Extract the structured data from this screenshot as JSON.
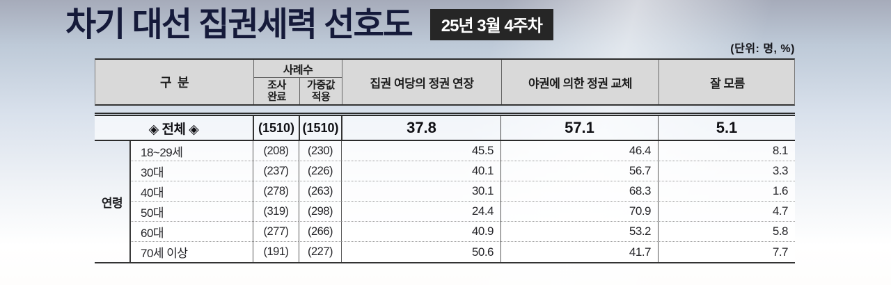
{
  "header": {
    "title": "차기 대선 집권세력 선호도",
    "badge": "25년 3월 4주차",
    "unit_label": "(단위: 명, %)"
  },
  "colors": {
    "title_navy": "#151a3a",
    "badge_background": "#262626",
    "badge_text": "#ffffff",
    "header_cell_background": "#d9d9d9",
    "table_line": "#2a2a2a"
  },
  "chart_data": {
    "type": "table",
    "title": "차기 대선 집권세력 선호도",
    "period": "25년 3월 4주차",
    "unit": "명, %",
    "col_headers": {
      "category": "구  분",
      "cases_group": "사례수",
      "cases_completed": "조사\n완료",
      "cases_weighted": "가중값\n적용",
      "ruling_extension": "집권 여당의 정권 연장",
      "opposition_change": "야권에 의한 정권 교체",
      "dont_know": "잘 모름"
    },
    "total_row": {
      "label": "◈ 전체 ◈",
      "completed": "(1510)",
      "weighted": "(1510)",
      "ruling_extension": "37.8",
      "opposition_change": "57.1",
      "dont_know": "5.1"
    },
    "group_label": "연령",
    "age_rows": [
      {
        "label": "18~29세",
        "completed": "(208)",
        "weighted": "(230)",
        "ruling_extension": "45.5",
        "opposition_change": "46.4",
        "dont_know": "8.1"
      },
      {
        "label": "30대",
        "completed": "(237)",
        "weighted": "(226)",
        "ruling_extension": "40.1",
        "opposition_change": "56.7",
        "dont_know": "3.3"
      },
      {
        "label": "40대",
        "completed": "(278)",
        "weighted": "(263)",
        "ruling_extension": "30.1",
        "opposition_change": "68.3",
        "dont_know": "1.6"
      },
      {
        "label": "50대",
        "completed": "(319)",
        "weighted": "(298)",
        "ruling_extension": "24.4",
        "opposition_change": "70.9",
        "dont_know": "4.7"
      },
      {
        "label": "60대",
        "completed": "(277)",
        "weighted": "(266)",
        "ruling_extension": "40.9",
        "opposition_change": "53.2",
        "dont_know": "5.8"
      },
      {
        "label": "70세 이상",
        "completed": "(191)",
        "weighted": "(227)",
        "ruling_extension": "50.6",
        "opposition_change": "41.7",
        "dont_know": "7.7"
      }
    ]
  }
}
